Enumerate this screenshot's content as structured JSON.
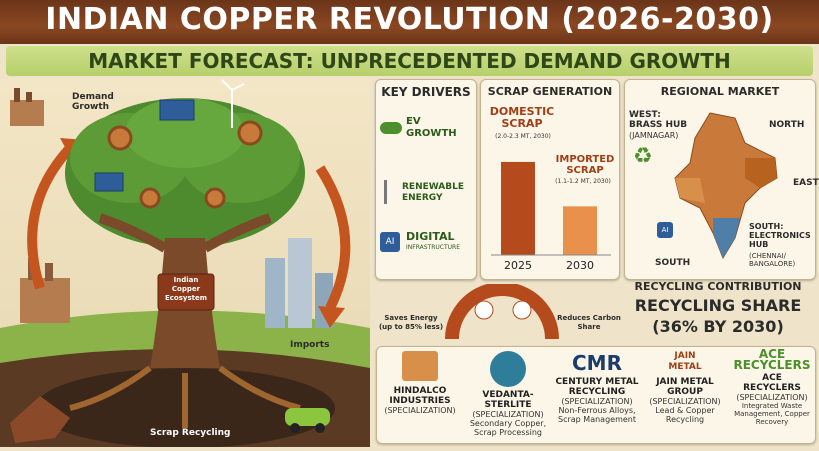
{
  "header": {
    "title": "INDIAN COPPER REVOLUTION (2026-2030)",
    "subtitle": "MARKET FORECAST: UNPRECEDENTED DEMAND GROWTH"
  },
  "tree": {
    "demand_growth": "Demand\nGrowth",
    "ecosystem": "Indian\nCopper\nEcosystem",
    "imports": "Imports",
    "scrap_recycling": "Scrap Recycling"
  },
  "key_drivers": {
    "title": "KEY DRIVERS",
    "items": [
      {
        "label": "EV\nGROWTH",
        "icon": "ev-car-icon"
      },
      {
        "label": "RENEWABLE\nENERGY",
        "icon": "wind-turbine-icon"
      },
      {
        "label": "DIGITAL",
        "sub": "INFRASTRUCTURE",
        "icon": "ai-chip-icon"
      }
    ]
  },
  "scrap": {
    "title": "SCRAP GENERATION",
    "domestic_label": "DOMESTIC\nSCRAP",
    "domestic_range": "(2.0-2.3 MT, 2030)",
    "imported_label": "IMPORTED\nSCRAP",
    "imported_range": "(1.1-1.2 MT, 2030)",
    "ai_badge": "AI"
  },
  "chart_data": {
    "type": "bar",
    "categories": [
      "2025",
      "2030"
    ],
    "series": [
      {
        "name": "DOMESTIC SCRAP",
        "values": [
          2.2,
          null
        ]
      },
      {
        "name": "IMPORTED SCRAP",
        "values": [
          null,
          1.15
        ]
      }
    ],
    "ylim": [
      0,
      2.6
    ]
  },
  "regional": {
    "title": "REGIONAL MARKET",
    "west": "WEST:\nBRASS HUB",
    "west_sub": "(JAMNAGAR)",
    "north": "NORTH",
    "east": "EAST",
    "south_label": "SOUTH",
    "south_hub": "SOUTH:\nELECTRONICS\nHUB",
    "south_sub": "(CHENNAI/\nBANGALORE)"
  },
  "recycling": {
    "title": "RECYCLING CONTRIBUTION",
    "share_line1": "RECYCLING SHARE",
    "share_line2": "(36% BY 2030)",
    "saves_energy": "Saves Energy\n(up to 85% less)",
    "reduces_carbon": "Reduces Carbon\nShare",
    "share_percent": 36
  },
  "companies": [
    {
      "logo": "",
      "name": "HINDALCO\nINDUSTRIES",
      "spec": "(SPECIALIZATION)",
      "detail": ""
    },
    {
      "logo": "",
      "name": "VEDANTA-STERLITE",
      "spec": "(SPECIALIZATION)",
      "detail": "Secondary Copper,\nScrap Processing"
    },
    {
      "logo": "CMR",
      "name": "CENTURY METAL\nRECYCLING",
      "spec": "(SPECIALIZATION)",
      "detail": "Non-Ferrous Alloys,\nScrap Management"
    },
    {
      "logo": "JAIN\nMETAL",
      "name": "JAIN METAL\nGROUP",
      "spec": "(SPECIALIZATION)",
      "detail": "Lead & Copper\nRecycling"
    },
    {
      "logo": "ACE\nRECYCLERS",
      "name": "ACE\nRECYCLERS",
      "spec": "(SPECIALIZATION)",
      "detail": "Integrated Waste\nManagement, Copper Recovery"
    }
  ],
  "colors": {
    "title_bg": "#7a3e1f",
    "subtitle_bg": "#c2d57a",
    "bar_domestic": "#b54a1c",
    "bar_imported": "#e9904c"
  }
}
